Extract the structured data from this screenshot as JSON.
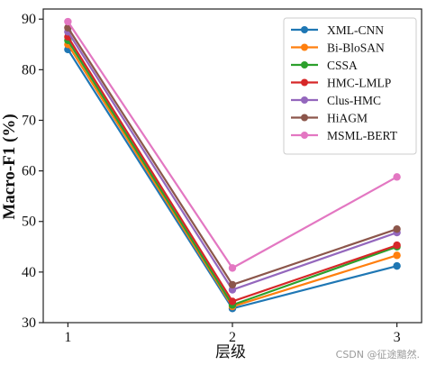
{
  "chart_data": {
    "type": "line",
    "x": [
      1,
      2,
      3
    ],
    "xticks": [
      "1",
      "2",
      "3"
    ],
    "xlabel": "层级",
    "ylabel": "Macro-F1 (%)",
    "ylim": [
      30,
      92
    ],
    "yticks": [
      30,
      40,
      50,
      60,
      70,
      80,
      90
    ],
    "grid": false,
    "legend": "top-right",
    "series": [
      {
        "name": "XML-CNN",
        "color": "#1f77b4",
        "values": [
          84.0,
          32.8,
          41.2
        ]
      },
      {
        "name": "Bi-BloSAN",
        "color": "#ff7f0e",
        "values": [
          85.0,
          33.2,
          43.3
        ]
      },
      {
        "name": "CSSA",
        "color": "#2ca02c",
        "values": [
          85.8,
          33.5,
          45.0
        ]
      },
      {
        "name": "HMC-LMLP",
        "color": "#d62728",
        "values": [
          86.5,
          34.2,
          45.3
        ]
      },
      {
        "name": "Clus-HMC",
        "color": "#9467bd",
        "values": [
          87.5,
          36.5,
          47.8
        ]
      },
      {
        "name": "HiAGM",
        "color": "#8c564b",
        "values": [
          88.3,
          37.5,
          48.5
        ]
      },
      {
        "name": "MSML-BERT",
        "color": "#e377c2",
        "values": [
          89.5,
          40.8,
          58.8
        ]
      }
    ]
  },
  "watermark": "CSDN @征途黯然."
}
